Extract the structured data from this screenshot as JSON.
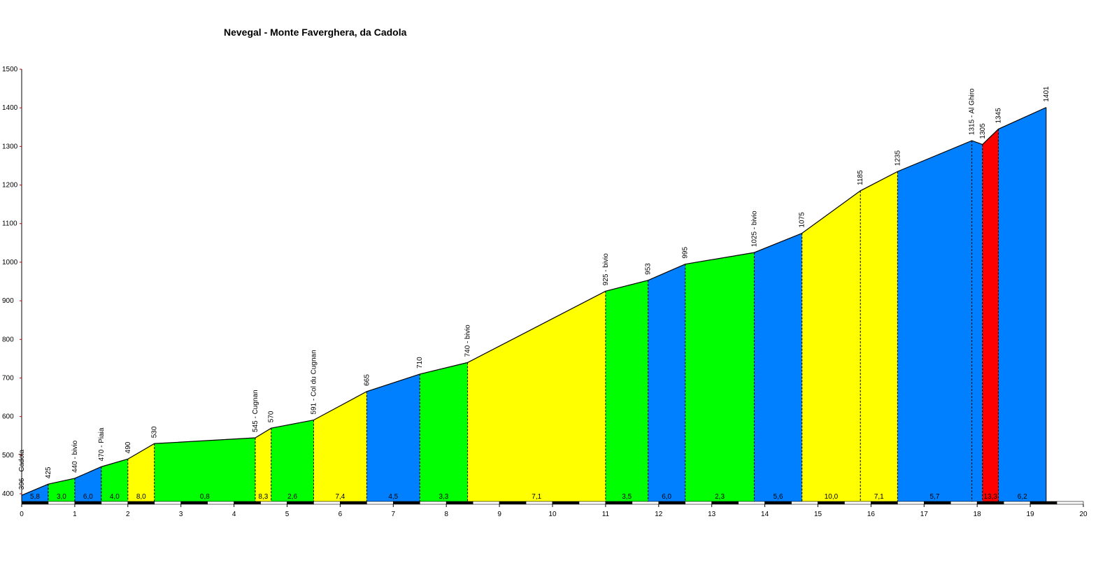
{
  "chart_data": {
    "type": "area",
    "title": "Nevegal - Monte Faverghera, da Cadola",
    "xlabel": "",
    "ylabel": "",
    "xlim": [
      0,
      20
    ],
    "ylim": [
      400,
      1500
    ],
    "grid": false,
    "y_ticks": [
      "400",
      "500",
      "600",
      "700",
      "800",
      "900",
      "1000",
      "1100",
      "1200",
      "1300",
      "1400",
      "1500"
    ],
    "x_ticks": [
      "0",
      "1",
      "2",
      "3",
      "4",
      "5",
      "6",
      "7",
      "8",
      "9",
      "10",
      "11",
      "12",
      "13",
      "14",
      "15",
      "16",
      "17",
      "18",
      "19",
      "20"
    ],
    "points": [
      {
        "x": 0.0,
        "y": 396,
        "label": "396 - Cadola"
      },
      {
        "x": 0.5,
        "y": 425,
        "label": "425"
      },
      {
        "x": 1.0,
        "y": 440,
        "label": "440 - bivio"
      },
      {
        "x": 1.5,
        "y": 470,
        "label": "470 - Piaia"
      },
      {
        "x": 2.0,
        "y": 490,
        "label": "490"
      },
      {
        "x": 2.5,
        "y": 530,
        "label": "530"
      },
      {
        "x": 4.4,
        "y": 545,
        "label": "545 - Cugnan"
      },
      {
        "x": 4.7,
        "y": 570,
        "label": "570"
      },
      {
        "x": 5.5,
        "y": 591,
        "label": "591 - Col du Cugnan"
      },
      {
        "x": 6.5,
        "y": 665,
        "label": "665"
      },
      {
        "x": 7.5,
        "y": 710,
        "label": "710"
      },
      {
        "x": 8.4,
        "y": 740,
        "label": "740 - bivio"
      },
      {
        "x": 11.0,
        "y": 925,
        "label": "925 - bivio"
      },
      {
        "x": 11.8,
        "y": 953,
        "label": "953"
      },
      {
        "x": 12.5,
        "y": 995,
        "label": "995"
      },
      {
        "x": 13.8,
        "y": 1025,
        "label": "1025 - bivio"
      },
      {
        "x": 14.7,
        "y": 1075,
        "label": "1075"
      },
      {
        "x": 15.8,
        "y": 1185,
        "label": "1185"
      },
      {
        "x": 16.5,
        "y": 1235,
        "label": "1235"
      },
      {
        "x": 17.9,
        "y": 1315,
        "label": "1315 - Al Ghiro"
      },
      {
        "x": 18.1,
        "y": 1305,
        "label": "1305"
      },
      {
        "x": 18.4,
        "y": 1345,
        "label": "1345"
      },
      {
        "x": 19.3,
        "y": 1401,
        "label": "1401"
      }
    ],
    "segments": [
      {
        "gradient": "5,8",
        "color": "#0080ff"
      },
      {
        "gradient": "3,0",
        "color": "#00ff00"
      },
      {
        "gradient": "6,0",
        "color": "#0080ff"
      },
      {
        "gradient": "4,0",
        "color": "#00ff00"
      },
      {
        "gradient": "8,0",
        "color": "#ffff00"
      },
      {
        "gradient": "0,8",
        "color": "#00ff00"
      },
      {
        "gradient": "8,3",
        "color": "#ffff00"
      },
      {
        "gradient": "2,6",
        "color": "#00ff00"
      },
      {
        "gradient": "7,4",
        "color": "#ffff00"
      },
      {
        "gradient": "4,5",
        "color": "#0080ff"
      },
      {
        "gradient": "3,3",
        "color": "#00ff00"
      },
      {
        "gradient": "7,1",
        "color": "#ffff00"
      },
      {
        "gradient": "3,5",
        "color": "#00ff00"
      },
      {
        "gradient": "6,0",
        "color": "#0080ff"
      },
      {
        "gradient": "2,3",
        "color": "#00ff00"
      },
      {
        "gradient": "5,6",
        "color": "#0080ff"
      },
      {
        "gradient": "10,0",
        "color": "#ffff00"
      },
      {
        "gradient": "7,1",
        "color": "#ffff00"
      },
      {
        "gradient": "5,7",
        "color": "#0080ff"
      },
      {
        "gradient": "",
        "color": "#0080ff"
      },
      {
        "gradient": "13,3",
        "color": "#ff0000"
      },
      {
        "gradient": "6,2",
        "color": "#0080ff"
      }
    ]
  }
}
